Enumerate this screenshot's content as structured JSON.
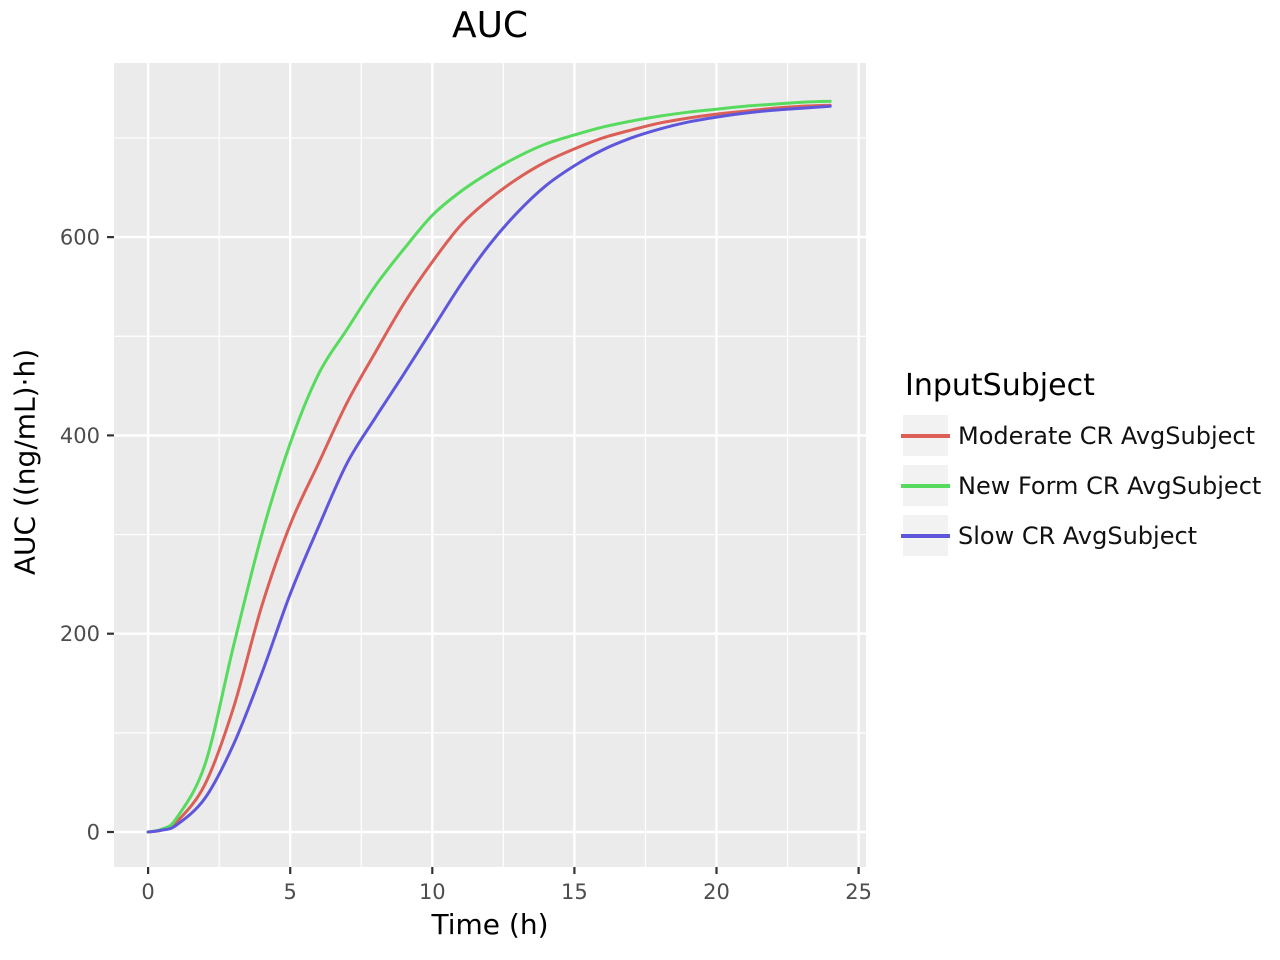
{
  "title": "AUC",
  "legend": {
    "title": "InputSubject"
  },
  "colors": {
    "panel_background": "#EBEBEB",
    "grid": "#FFFFFF",
    "tick_mark": "#333333",
    "tick_label": "#4D4D4D",
    "legend_key_background": "#F2F2F2",
    "series_red": "#DB5F57",
    "series_green": "#57DB5F",
    "series_blue": "#5F57DB"
  },
  "chart_data": {
    "type": "line",
    "title": "AUC",
    "xlabel": "Time (h)",
    "ylabel": "AUC ((ng/mL)·h)",
    "legend_title": "InputSubject",
    "legend_position": "right",
    "grid": "on",
    "xlim": [
      -1.2,
      25.26
    ],
    "ylim": [
      -35.3,
      775.6
    ],
    "x_ticks": {
      "values": [
        0,
        5,
        10,
        15,
        20,
        25
      ],
      "labels": [
        "0",
        "5",
        "10",
        "15",
        "20",
        "25"
      ]
    },
    "y_ticks": {
      "values": [
        0,
        200,
        400,
        600
      ],
      "labels": [
        "0",
        "200",
        "400",
        "600"
      ]
    },
    "x_minor": [
      2.5,
      7.5,
      12.5,
      17.5,
      22.5
    ],
    "y_minor": [
      100,
      300,
      500,
      700
    ],
    "x": [
      0,
      0.5,
      1,
      2,
      3,
      4,
      5,
      6,
      7,
      8,
      9,
      10,
      11,
      12,
      13,
      14,
      15,
      16,
      17,
      18,
      19,
      20,
      21,
      22,
      23,
      24
    ],
    "series": [
      {
        "name": "Moderate CR AvgSubject",
        "color": "#DB5F57",
        "values": [
          0,
          2,
          10,
          48,
          125,
          228,
          310,
          372,
          433,
          484,
          533,
          575,
          612,
          638,
          659,
          676,
          689,
          700,
          708,
          715,
          720,
          724,
          727,
          730,
          732,
          733
        ]
      },
      {
        "name": "New Form CR AvgSubject",
        "color": "#57DB5F",
        "values": [
          0,
          3,
          14,
          68,
          187,
          300,
          392,
          462,
          507,
          551,
          588,
          622,
          646,
          665,
          681,
          694,
          703,
          711,
          717,
          722,
          726,
          729,
          732,
          734,
          736,
          737
        ]
      },
      {
        "name": "Slow CR AvgSubject",
        "color": "#5F57DB",
        "values": [
          0,
          2,
          7,
          34,
          88,
          160,
          240,
          308,
          372,
          418,
          462,
          507,
          552,
          592,
          625,
          652,
          672,
          688,
          700,
          709,
          716,
          721,
          725,
          728,
          730,
          732
        ]
      }
    ]
  }
}
